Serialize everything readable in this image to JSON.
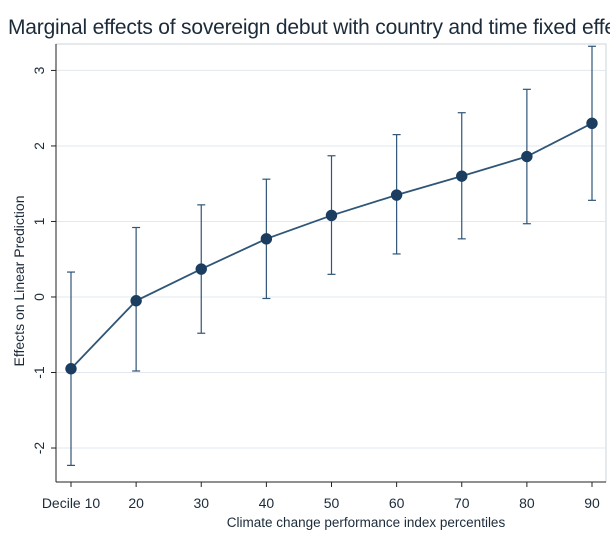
{
  "chart_data": {
    "type": "line",
    "title": "Marginal effects of sovereign debut with country and time fixed effect",
    "xlabel": "Climate change performance index percentiles",
    "ylabel": "Effects on Linear Prediction",
    "x": [
      10,
      20,
      30,
      40,
      50,
      60,
      70,
      80,
      90
    ],
    "x_tick_labels": [
      "Decile 10",
      "20",
      "30",
      "40",
      "50",
      "60",
      "70",
      "80",
      "90"
    ],
    "y_ticks": [
      -2,
      -1,
      0,
      1,
      2,
      3
    ],
    "y_tick_labels": [
      "-2",
      "-1",
      "0",
      "1",
      "2",
      "3"
    ],
    "ylim": [
      -2.45,
      3.35
    ],
    "series": [
      {
        "values": [
          -0.95,
          -0.05,
          0.37,
          0.77,
          1.08,
          1.35,
          1.6,
          1.86,
          2.3
        ],
        "ci_low": [
          -2.23,
          -0.98,
          -0.48,
          -0.02,
          0.3,
          0.57,
          0.77,
          0.97,
          1.28
        ],
        "ci_high": [
          0.33,
          0.92,
          1.22,
          1.56,
          1.87,
          2.15,
          2.44,
          2.75,
          3.32
        ]
      }
    ],
    "grid": "horizontal",
    "colors": {
      "line": "#2f5577",
      "marker": "#1a3d60",
      "error_bar": "#2f5577",
      "axis": "#222222",
      "grid": "#e3e8ee",
      "text": "#1c2b3a",
      "plot_border": "#cfd5db"
    }
  }
}
